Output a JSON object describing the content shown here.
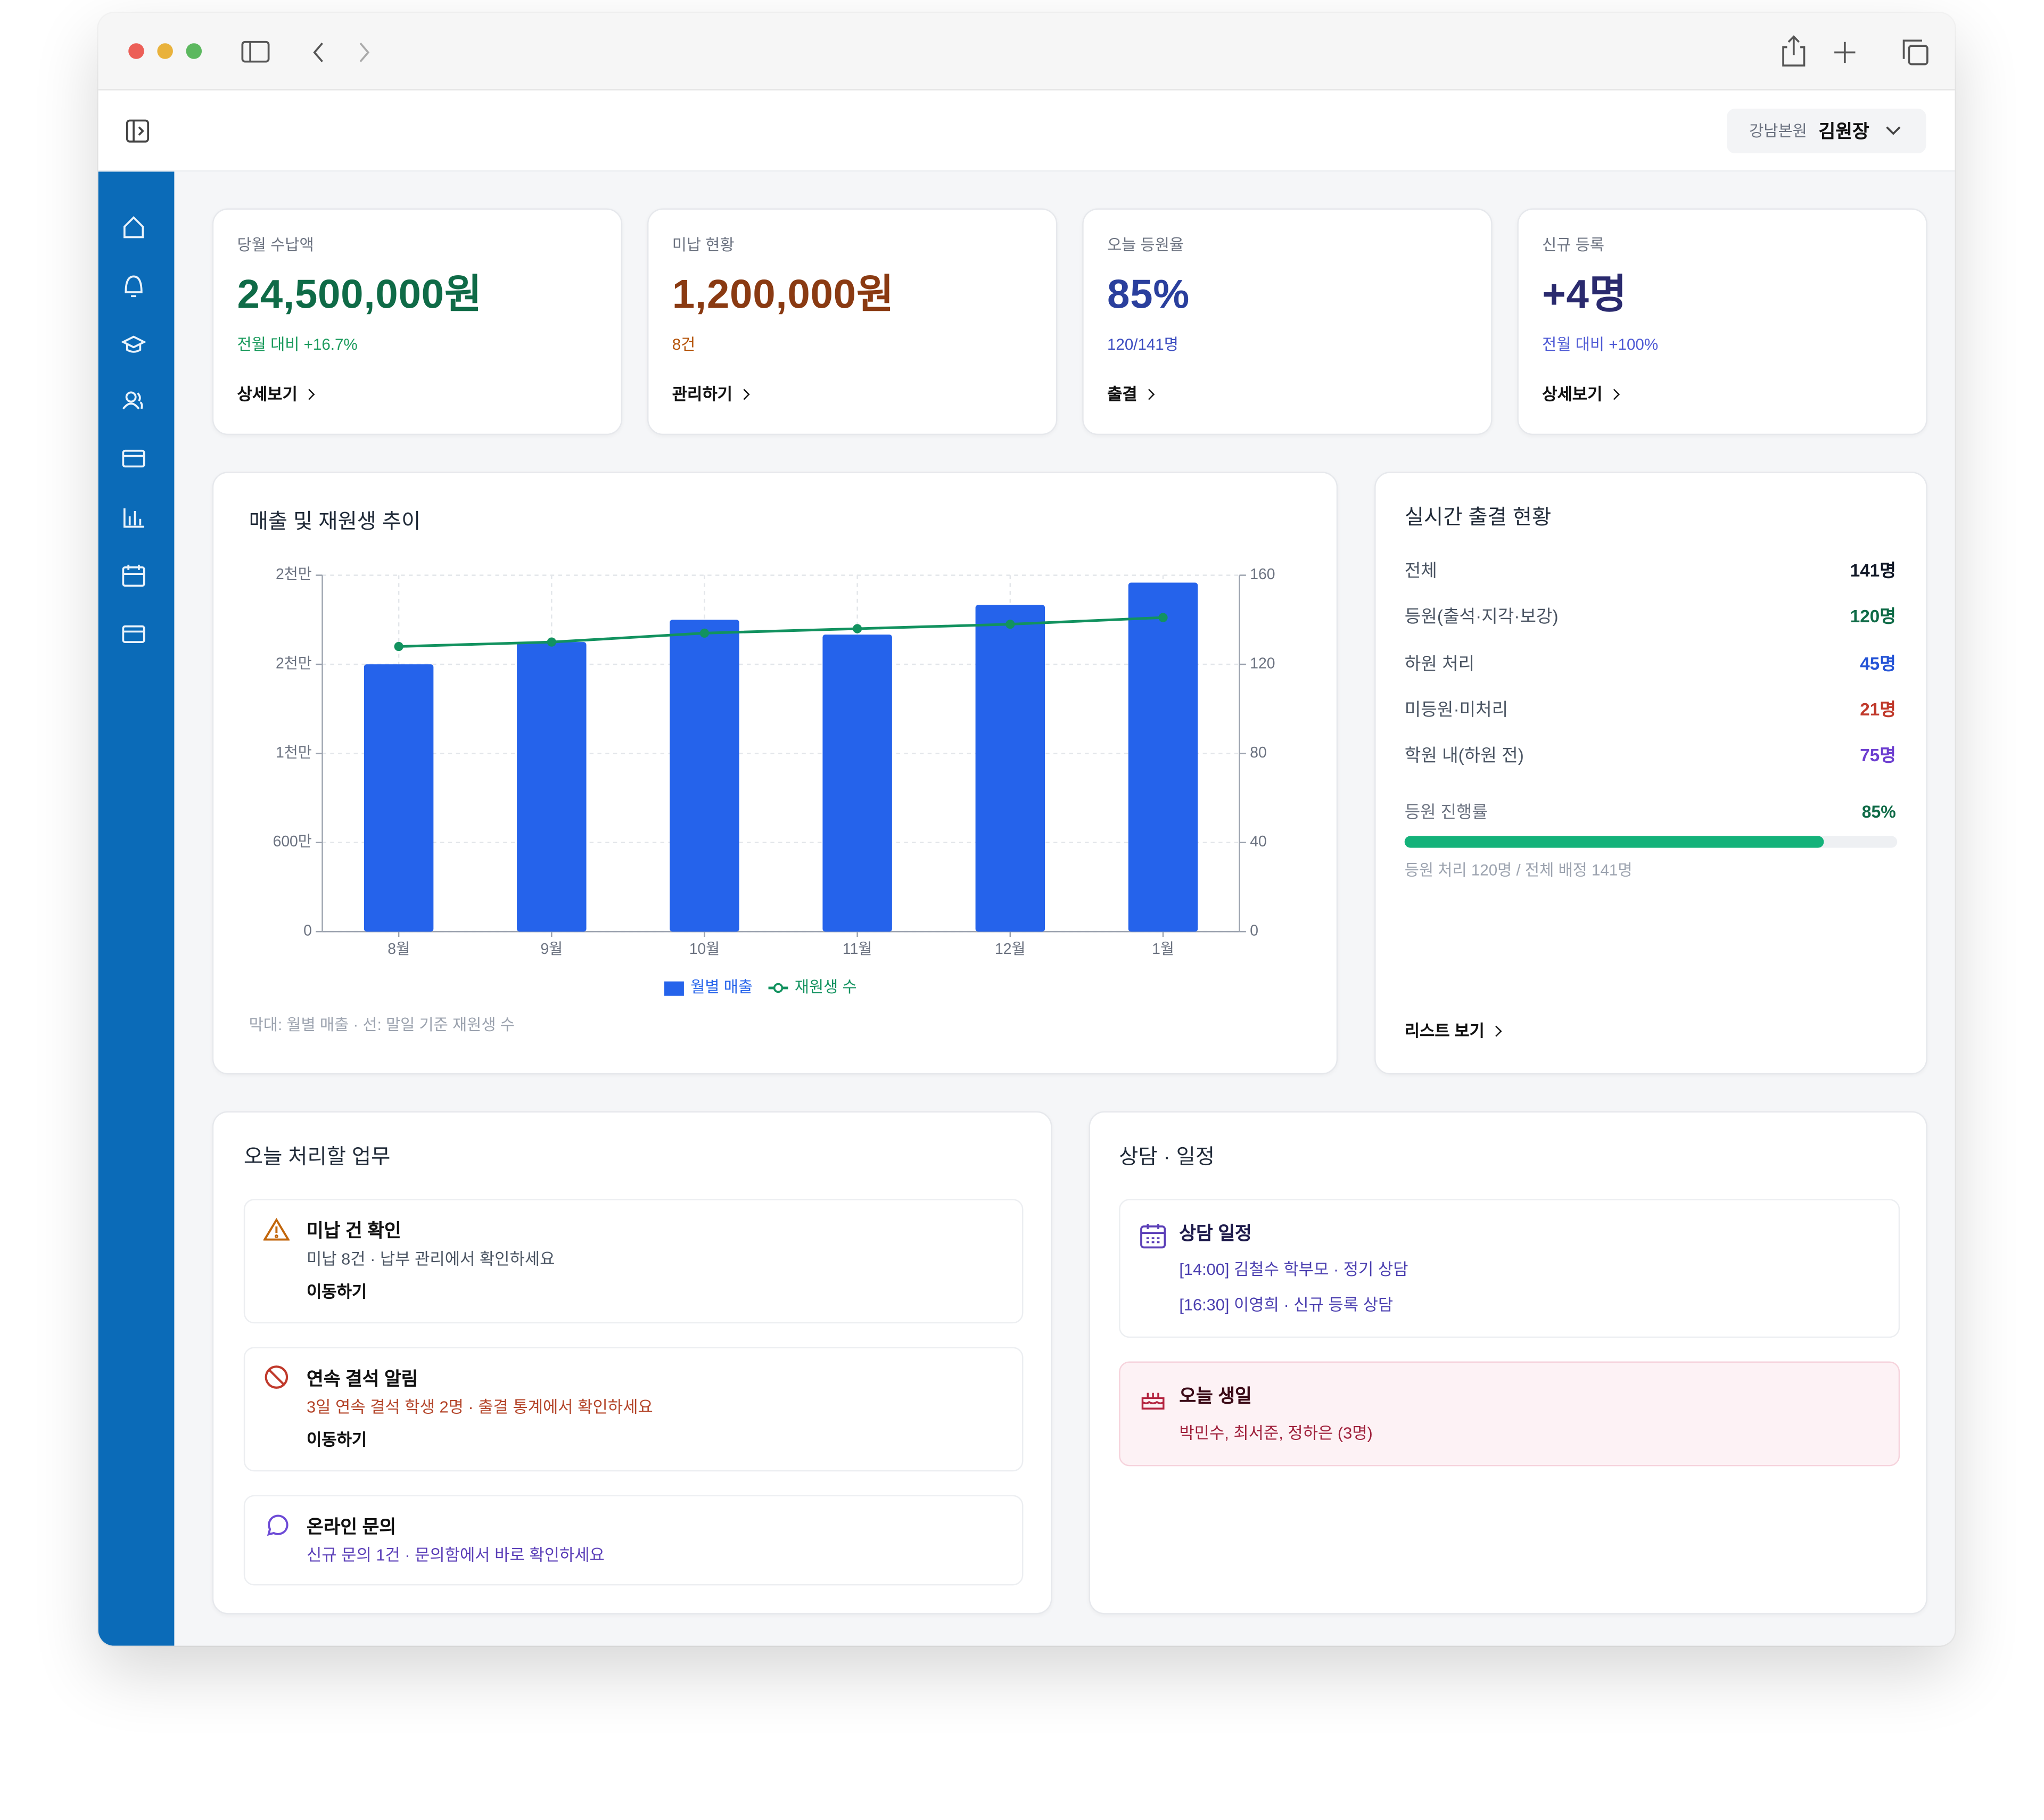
{
  "header": {
    "branch": "강남본원",
    "user": "김원장"
  },
  "kpis": [
    {
      "label": "당월 수납액",
      "value": "24,500,000원",
      "sub": "전월 대비 +16.7%",
      "link": "상세보기"
    },
    {
      "label": "미납 현황",
      "value": "1,200,000원",
      "sub": "8건",
      "link": "관리하기"
    },
    {
      "label": "오늘 등원율",
      "value": "85%",
      "sub": "120/141명",
      "link": "출결"
    },
    {
      "label": "신규 등록",
      "value": "+4명",
      "sub": "전월 대비 +100%",
      "link": "상세보기"
    }
  ],
  "chart_data": {
    "type": "bar",
    "title": "매출 및 재원생 추이",
    "caption": "막대: 월별 매출 · 선: 말일 기준 재원생 수",
    "categories": [
      "8월",
      "9월",
      "10월",
      "11월",
      "12월",
      "1월"
    ],
    "series": [
      {
        "name": "월별 매출",
        "type": "bar",
        "color": "#2563eb",
        "values": [
          18000000,
          19500000,
          21000000,
          20000000,
          22000000,
          23500000
        ]
      },
      {
        "name": "재원생 수",
        "type": "line",
        "axis": "y2",
        "color": "#12925f",
        "values": [
          128,
          130,
          134,
          136,
          138,
          141
        ]
      }
    ],
    "ylim": [
      0,
      24000000
    ],
    "yticks": [
      0,
      {
        "value": 6000000,
        "label": "600만"
      },
      {
        "value": 12000000,
        "label": "1천만"
      },
      {
        "value": 18000000,
        "label": "2천만"
      },
      {
        "value": 24000000,
        "label": "2천만"
      }
    ],
    "y2lim": [
      0,
      160
    ],
    "y2ticks": [
      0,
      40,
      80,
      120,
      160
    ],
    "grid": true
  },
  "attendance": {
    "title": "실시간 출결 현황",
    "rows": [
      {
        "label": "전체",
        "value": "141명"
      },
      {
        "label": "등원(출석·지각·보강)",
        "value": "120명"
      },
      {
        "label": "하원 처리",
        "value": "45명"
      },
      {
        "label": "미등원·미처리",
        "value": "21명"
      },
      {
        "label": "학원 내(하원 전)",
        "value": "75명"
      }
    ],
    "progress": {
      "label": "등원 진행률",
      "value": 85,
      "value_label": "85%",
      "note": "등원 처리 120명 / 전체 배정 141명"
    },
    "link": "리스트 보기"
  },
  "tasks": {
    "title": "오늘 처리할 업무",
    "items": [
      {
        "title": "미납 건 확인",
        "desc": "미납 8건 · 납부 관리에서 확인하세요",
        "link": "이동하기"
      },
      {
        "title": "연속 결석 알림",
        "desc": "3일 연속 결석 학생 2명 · 출결 통계에서 확인하세요",
        "link": "이동하기"
      },
      {
        "title": "온라인 문의",
        "desc": "신규 문의 1건 · 문의함에서 바로 확인하세요"
      }
    ]
  },
  "schedule": {
    "title": "상담 · 일정",
    "consult": {
      "title": "상담 일정",
      "items": [
        "[14:00] 김철수 학부모 · 정기 상담",
        "[16:30] 이영희 · 신규 등록 상담"
      ]
    },
    "birthday": {
      "title": "오늘 생일",
      "desc": "박민수, 최서준, 정하은 (3명)"
    }
  }
}
